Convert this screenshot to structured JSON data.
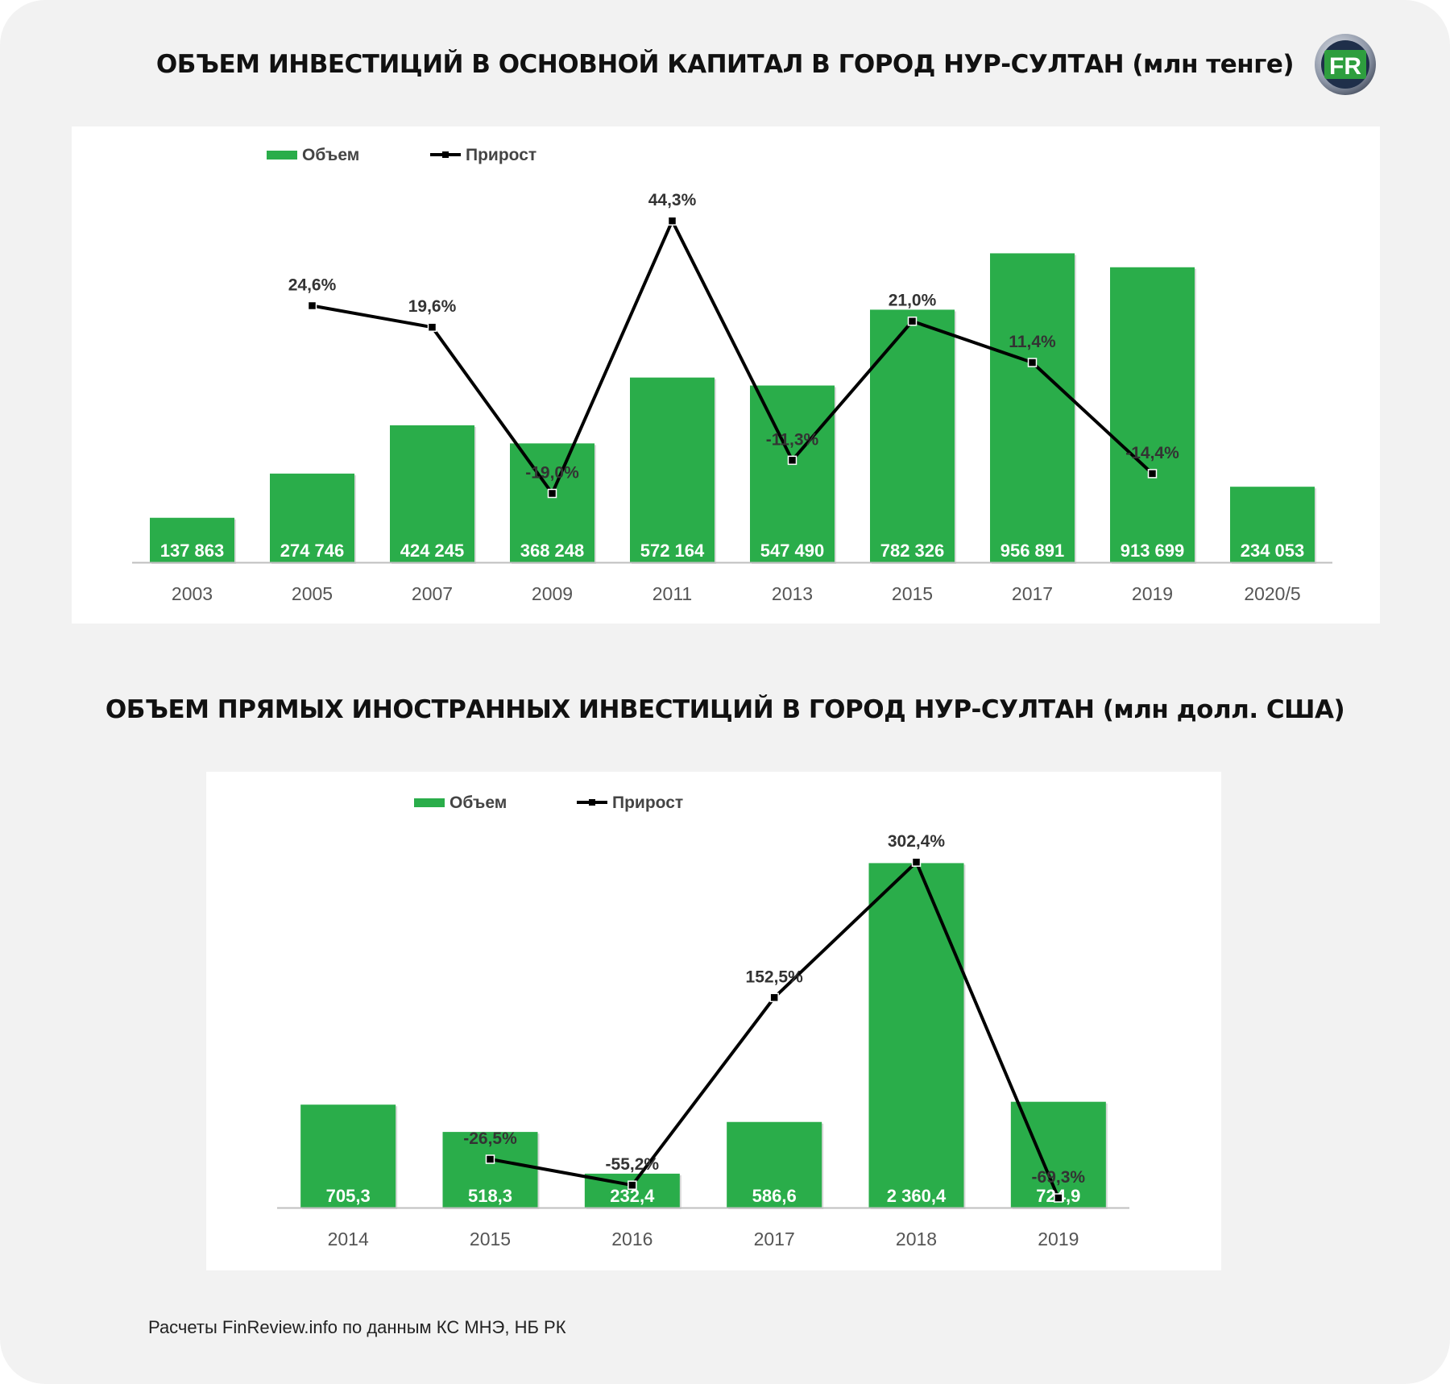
{
  "source_note": "Расчеты FinReview.info по данным КС МНЭ, НБ РК",
  "logo": {
    "letters": "FR",
    "colors": {
      "ring": "#8c95a6",
      "fill": "#2e9e3e",
      "letter": "#ffffff"
    }
  },
  "colors": {
    "bar": "#2aad4a",
    "line": "#000000",
    "value_label": "#ffffff",
    "pct_label": "#333333",
    "axis_tick": "#555555",
    "axis_line": "#bfbfbf"
  },
  "chart_data": [
    {
      "type": "bar",
      "title": "ОБЪЕМ ИНВЕСТИЦИЙ В ОСНОВНОЙ КАПИТАЛ В ГОРОД НУР-СУЛТАН (млн тенге)",
      "categories": [
        "2003",
        "2005",
        "2007",
        "2009",
        "2011",
        "2013",
        "2015",
        "2017",
        "2019",
        "2020/5"
      ],
      "legend": {
        "position": "top-left",
        "items": [
          "Объем",
          "Прирост"
        ]
      },
      "series": [
        {
          "name": "Объем",
          "type": "bar",
          "axis": "left",
          "values": [
            137863,
            274746,
            424245,
            368248,
            572164,
            547490,
            782326,
            956891,
            913699,
            234053
          ],
          "labels": [
            "137 863",
            "274 746",
            "424 245",
            "368 248",
            "572 164",
            "547 490",
            "782 326",
            "956 891",
            "913 699",
            "234 053"
          ]
        },
        {
          "name": "Прирост",
          "type": "line",
          "axis": "right",
          "values": [
            null,
            24.6,
            19.6,
            -19.0,
            44.3,
            -11.3,
            21.0,
            11.4,
            -14.4,
            null
          ],
          "labels": [
            "",
            "24,6%",
            "19,6%",
            "-19,0%",
            "44,3%",
            "-11,3%",
            "21,0%",
            "11,4%",
            "-14,4%",
            ""
          ]
        }
      ],
      "y_left_range": [
        0,
        1200000
      ],
      "y_right_range": [
        -35,
        55
      ],
      "grid": false
    },
    {
      "type": "bar",
      "title": "ОБЪЕМ ПРЯМЫХ ИНОСТРАННЫХ ИНВЕСТИЦИЙ В ГОРОД НУР-СУЛТАН (млн долл. США)",
      "categories": [
        "2014",
        "2015",
        "2016",
        "2017",
        "2018",
        "2019"
      ],
      "legend": {
        "position": "top-left",
        "items": [
          "Объем",
          "Прирост"
        ]
      },
      "series": [
        {
          "name": "Объем",
          "type": "bar",
          "axis": "left",
          "values": [
            705.3,
            518.3,
            232.4,
            586.6,
            2360.4,
            724.9
          ],
          "labels": [
            "705,3",
            "518,3",
            "232,4",
            "586,6",
            "2 360,4",
            "724,9"
          ]
        },
        {
          "name": "Прирост",
          "type": "line",
          "axis": "right",
          "values": [
            null,
            -26.5,
            -55.2,
            152.5,
            302.4,
            -69.3
          ],
          "labels": [
            "",
            "-26,5%",
            "-55,2%",
            "152,5%",
            "302,4%",
            "-69,3%"
          ]
        }
      ],
      "y_left_range": [
        0,
        2600
      ],
      "y_right_range": [
        -80,
        340
      ],
      "grid": false
    }
  ]
}
